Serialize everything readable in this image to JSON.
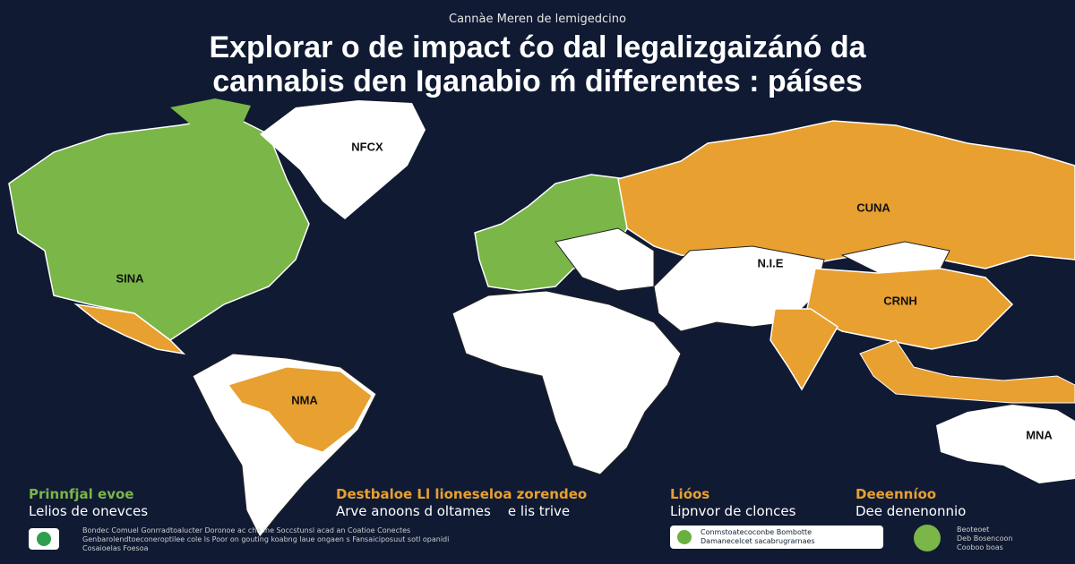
{
  "header": {
    "kicker": "Cannàe Meren de lemigedcino",
    "title_lines": [
      "Explorar o de impact ćo dal legalizgaizánó da",
      "cannabis den Iganabio ḿ differentes : páíses"
    ]
  },
  "map": {
    "labels": [
      "NFCX",
      "CUNA",
      "SINA",
      "N.I.E",
      "CRNH",
      "NMA",
      "MNA"
    ]
  },
  "legend": [
    {
      "heading": "Prinnfjal evoe",
      "text": "Lelios de onevces"
    },
    {
      "heading": "Destbaloe Ll lioneseloa zorendeo",
      "text": "Arve anoons d oltames    e lis trive"
    },
    {
      "heading": "Lióos",
      "text": "Lipnvor de clonces"
    },
    {
      "heading": "Deeenníoo",
      "text": "Dee denenonnio"
    }
  ],
  "footer": {
    "note_lines": [
      "Bondec Comuel Gonrradtoalucter Doronoe ac cha lne Soccstunsl acad an Coatioe Conectes",
      "Genbarolendtoeconeroptilee cole ls Poor on gouting koabng laue ongaen s Fansaiciposuut sotl opanidi",
      "Cosaioelas Foesoa"
    ],
    "badge_lines": [
      "Conmstoatecoconbe Bombotte",
      "Damanecelcet sacabrugrarnaes"
    ],
    "right_lines": [
      "Beoteoet",
      "Deb Bosencoon",
      "Cooboo boas"
    ]
  }
}
